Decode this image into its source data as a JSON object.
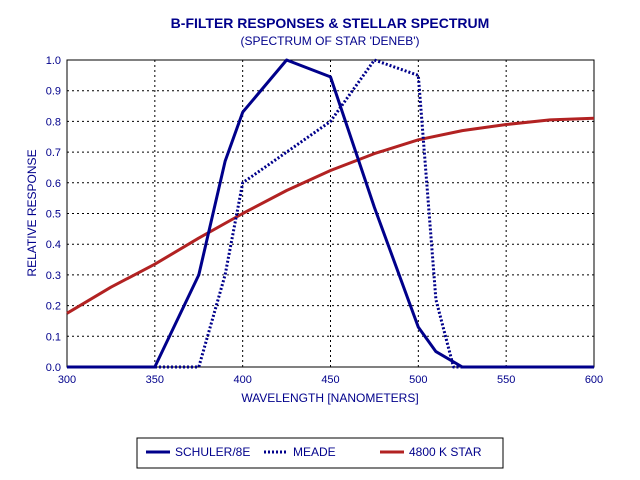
{
  "chart_data": {
    "type": "line",
    "title": "B-FILTER RESPONSES & STELLAR SPECTRUM",
    "subtitle": "(SPECTRUM OF STAR 'DENEB')",
    "xlabel": "WAVELENGTH [NANOMETERS]",
    "ylabel": "RELATIVE RESPONSE",
    "xlim": [
      300,
      600
    ],
    "ylim": [
      0,
      1
    ],
    "x_ticks": [
      300,
      350,
      400,
      450,
      500,
      550,
      600
    ],
    "x_tick_labels": [
      "300",
      "350",
      "400",
      "450",
      "500",
      "550",
      "600"
    ],
    "y_ticks": [
      0,
      0.1,
      0.2,
      0.3,
      0.4,
      0.5,
      0.6,
      0.7,
      0.8,
      0.9,
      1.0
    ],
    "y_tick_labels": [
      "0.0",
      "0.1",
      "0.2",
      "0.3",
      "0.4",
      "0.5",
      "0.6",
      "0.7",
      "0.8",
      "0.9",
      "1.0"
    ],
    "grid": true,
    "legend_position": "bottom",
    "series": [
      {
        "name": "SCHULER/8E",
        "color": "#00008b",
        "style": "solid",
        "points": [
          [
            300,
            0
          ],
          [
            350,
            0
          ],
          [
            375,
            0.3
          ],
          [
            390,
            0.67
          ],
          [
            400,
            0.83
          ],
          [
            425,
            1.0
          ],
          [
            450,
            0.945
          ],
          [
            475,
            0.52
          ],
          [
            500,
            0.13
          ],
          [
            510,
            0.05
          ],
          [
            525,
            0
          ],
          [
            600,
            0
          ]
        ]
      },
      {
        "name": "MEADE",
        "color": "#00008b",
        "style": "dotted",
        "points": [
          [
            300,
            0
          ],
          [
            375,
            0
          ],
          [
            390,
            0.3
          ],
          [
            400,
            0.6
          ],
          [
            425,
            0.7
          ],
          [
            450,
            0.8
          ],
          [
            475,
            1.0
          ],
          [
            500,
            0.95
          ],
          [
            510,
            0.22
          ],
          [
            520,
            0
          ],
          [
            600,
            0
          ]
        ]
      },
      {
        "name": "4800 K STAR",
        "color": "#b22222",
        "style": "solid",
        "points": [
          [
            300,
            0.175
          ],
          [
            325,
            0.26
          ],
          [
            350,
            0.335
          ],
          [
            375,
            0.42
          ],
          [
            400,
            0.5
          ],
          [
            425,
            0.575
          ],
          [
            450,
            0.64
          ],
          [
            475,
            0.695
          ],
          [
            500,
            0.74
          ],
          [
            525,
            0.77
          ],
          [
            550,
            0.79
          ],
          [
            575,
            0.805
          ],
          [
            600,
            0.81
          ]
        ]
      }
    ]
  }
}
